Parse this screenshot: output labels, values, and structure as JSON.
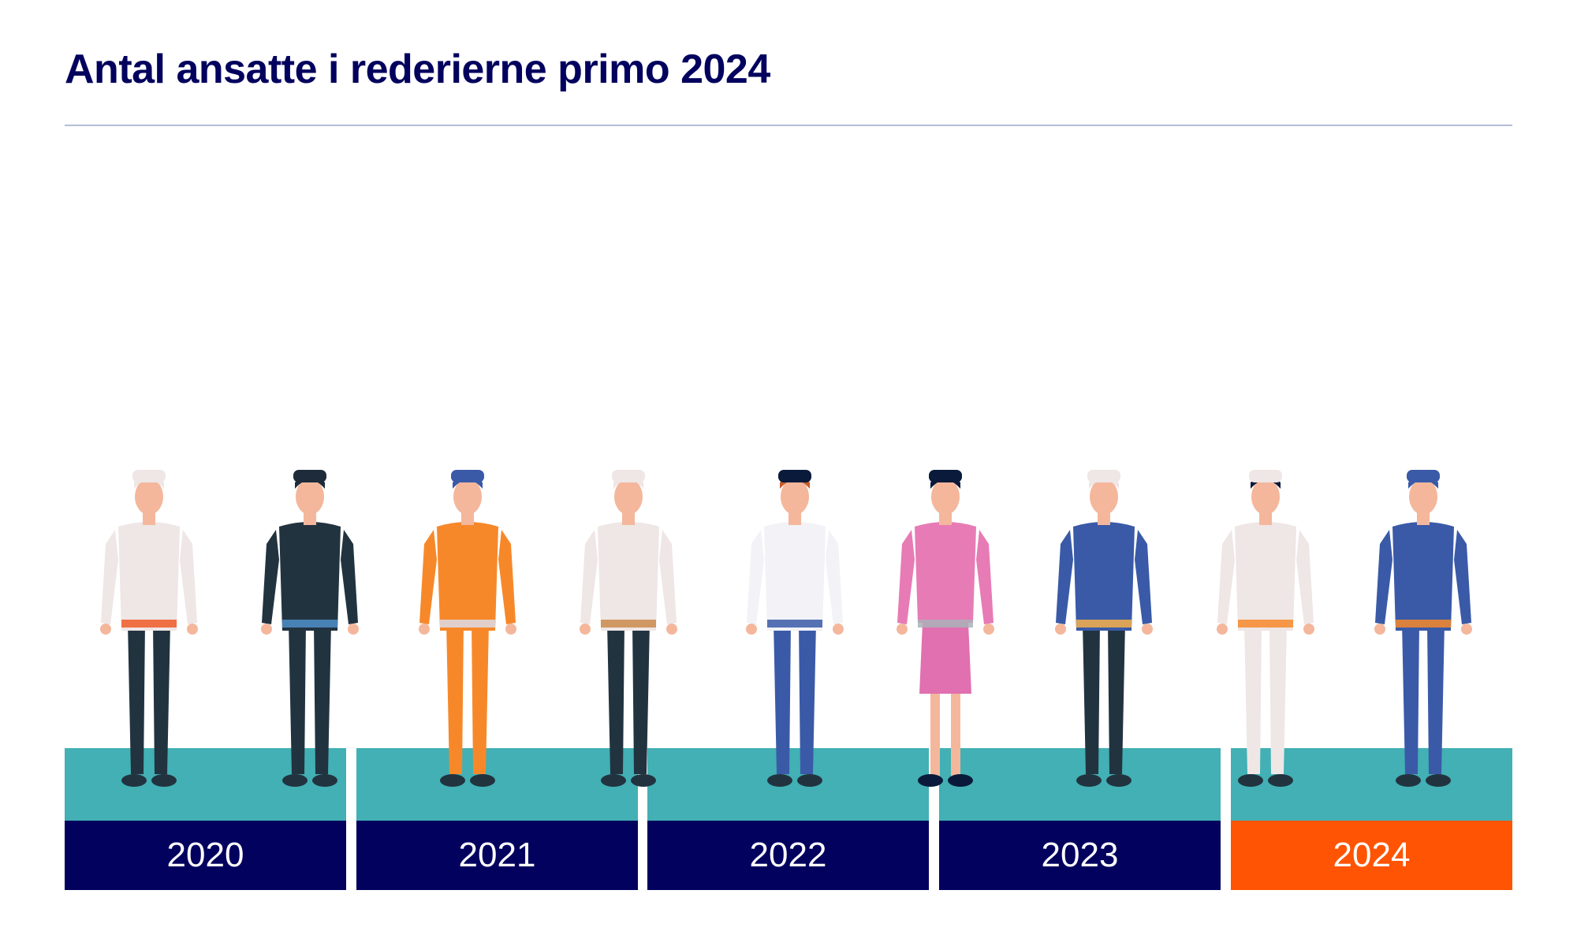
{
  "header": {
    "title": "Antal ansatte i rederierne primo 2024"
  },
  "colors": {
    "navy": "#02025e",
    "teal": "#42b0b4",
    "highlight": "#ff5403"
  },
  "chart_data": {
    "type": "bar",
    "title": "Antal ansatte i rederierne primo 2024",
    "categories": [
      "2020",
      "2021",
      "2022",
      "2023",
      "2024"
    ],
    "highlighted": "2024",
    "xlabel": "",
    "ylabel": ""
  },
  "figures": [
    {
      "name": "chef-figure",
      "skin": "#f4b79c",
      "hat": "#efe6e6",
      "hair": "#efe6e6",
      "top": "#efe6e6",
      "bottom": "#223340",
      "shoe": "#223340",
      "accent": "#f05a28"
    },
    {
      "name": "businessman-figure",
      "skin": "#f4b79c",
      "hat": "#1d2b3a",
      "hair": "#1d2b3a",
      "top": "#223340",
      "bottom": "#223340",
      "shoe": "#223340",
      "accent": "#4f8fc9"
    },
    {
      "name": "engineer-figure",
      "skin": "#f4b79c",
      "hat": "#3a5aa8",
      "hair": "#3a5aa8",
      "top": "#f7882a",
      "bottom": "#f7882a",
      "shoe": "#223340",
      "accent": "#dcdce6"
    },
    {
      "name": "saluting-sailor-figure",
      "skin": "#f4b79c",
      "hat": "#efe6e6",
      "hair": "#efe6e6",
      "top": "#efe6e6",
      "bottom": "#223340",
      "shoe": "#223340",
      "accent": "#c98a4b"
    },
    {
      "name": "striped-sailor-figure",
      "skin": "#f4b79c",
      "hat": "#0a1a3a",
      "hair": "#c85a2a",
      "top": "#f2f2f7",
      "bottom": "#3a5aa8",
      "shoe": "#223340",
      "accent": "#3a5aa8"
    },
    {
      "name": "office-woman-figure",
      "skin": "#f4b79c",
      "hat": "#0a1a3a",
      "hair": "#0a1a3a",
      "top": "#e77bb5",
      "bottom": "#e070b0",
      "shoe": "#0a1a3a",
      "accent": "#aab2b8"
    },
    {
      "name": "captain-figure",
      "skin": "#f4b79c",
      "hat": "#efe6e6",
      "hair": "#efe6e6",
      "top": "#3a5aa8",
      "bottom": "#223340",
      "shoe": "#223340",
      "accent": "#f7b04a"
    },
    {
      "name": "female-officer-figure",
      "skin": "#f4b79c",
      "hat": "#efe6e6",
      "hair": "#0a1a3a",
      "top": "#efe6e6",
      "bottom": "#efe6e6",
      "shoe": "#223340",
      "accent": "#f7882a"
    },
    {
      "name": "lifeguard-figure",
      "skin": "#f4b79c",
      "hat": "#3a5aa8",
      "hair": "#3a5aa8",
      "top": "#3a5aa8",
      "bottom": "#3a5aa8",
      "shoe": "#223340",
      "accent": "#f7882a"
    }
  ]
}
